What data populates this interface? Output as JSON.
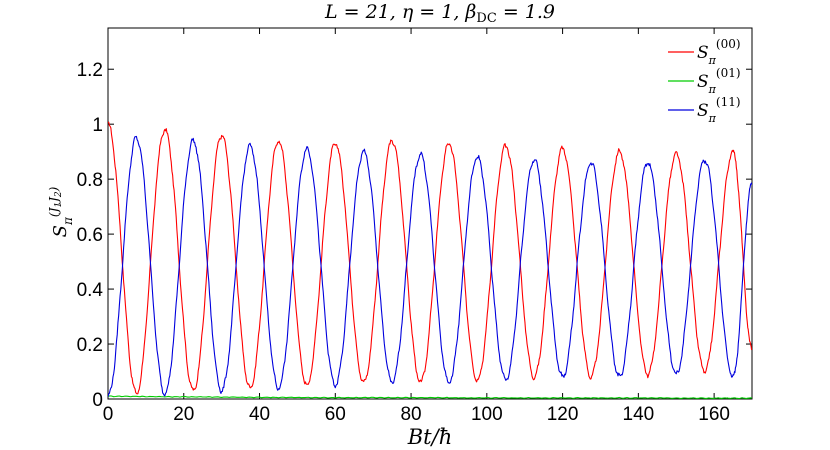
{
  "chart_data": {
    "type": "line",
    "title": "L = 21, η = 1, β_DC = 1.9",
    "xlabel": "Bt/ħ",
    "ylabel": "S_π^(J1 J2)",
    "xlim": [
      0,
      170
    ],
    "ylim": [
      0,
      1.35
    ],
    "xticks": [
      0,
      20,
      40,
      60,
      80,
      100,
      120,
      140,
      160
    ],
    "yticks": [
      0,
      0.2,
      0.4,
      0.6,
      0.8,
      1,
      1.2
    ],
    "xtick_labels": [
      "0",
      "20",
      "40",
      "60",
      "80",
      "100",
      "120",
      "140",
      "160"
    ],
    "ytick_labels": [
      "0",
      "0.2",
      "0.4",
      "0.6",
      "0.8",
      "1",
      "1.2"
    ],
    "grid": false,
    "legend_position": "top-right",
    "series": [
      {
        "name": "S_π^(00)",
        "color": "#ff0000",
        "x": [
          0,
          7.5,
          15,
          22.5,
          30,
          37.5,
          45,
          52.5,
          60,
          67.5,
          75,
          82.5,
          90,
          97.5,
          105,
          112.5,
          120,
          127.5,
          135,
          142.5,
          150,
          157.5,
          165,
          170
        ],
        "y": [
          1.0,
          0.02,
          0.98,
          0.03,
          0.96,
          0.04,
          0.94,
          0.05,
          0.93,
          0.06,
          0.94,
          0.06,
          0.93,
          0.07,
          0.92,
          0.08,
          0.91,
          0.08,
          0.9,
          0.09,
          0.89,
          0.1,
          0.9,
          0.18
        ]
      },
      {
        "name": "S_π^(01)",
        "color": "#00cc00",
        "x": [
          0,
          20,
          40,
          60,
          80,
          100,
          120,
          140,
          160,
          170
        ],
        "y": [
          0.01,
          0.008,
          0.006,
          0.005,
          0.005,
          0.004,
          0.004,
          0.004,
          0.003,
          0.003
        ]
      },
      {
        "name": "S_π^(11)",
        "color": "#0000dd",
        "x": [
          0,
          7.5,
          15,
          22.5,
          30,
          37.5,
          45,
          52.5,
          60,
          67.5,
          75,
          82.5,
          90,
          97.5,
          105,
          112.5,
          120,
          127.5,
          135,
          142.5,
          150,
          157.5,
          165,
          170
        ],
        "y": [
          0.01,
          0.95,
          0.02,
          0.94,
          0.03,
          0.92,
          0.04,
          0.91,
          0.05,
          0.9,
          0.06,
          0.89,
          0.06,
          0.88,
          0.07,
          0.87,
          0.08,
          0.86,
          0.08,
          0.86,
          0.09,
          0.87,
          0.08,
          0.78
        ]
      }
    ]
  }
}
